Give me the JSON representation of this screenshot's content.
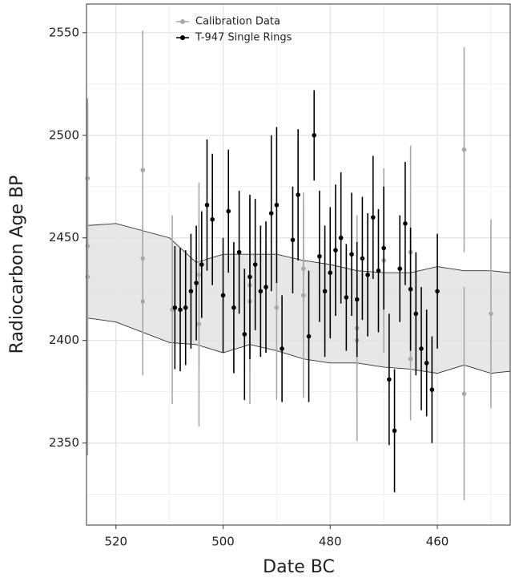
{
  "chart_data": {
    "type": "scatter",
    "x_label": "Date BC",
    "y_label": "Radiocarbon Age BP",
    "xlim": [
      525.5,
      446.4
    ],
    "ylim": [
      2310,
      2564
    ],
    "xticks": [
      520,
      500,
      480,
      460
    ],
    "yticks": [
      2350,
      2400,
      2450,
      2500,
      2550
    ],
    "x_minor_ticks": [
      510,
      490,
      470,
      450
    ],
    "y_minor_ticks": [
      2325,
      2375,
      2425,
      2475,
      2525
    ],
    "grid": true,
    "legend": "top-left",
    "band": {
      "color": "#e3e3e3",
      "x": [
        525.5,
        520,
        510,
        505,
        500,
        495,
        490,
        485,
        480,
        475,
        470,
        465,
        460,
        455,
        450,
        446.4
      ],
      "upper": [
        2456,
        2457,
        2450,
        2438,
        2442,
        2442,
        2442,
        2439,
        2437,
        2434,
        2433,
        2433,
        2436,
        2434,
        2434,
        2433
      ],
      "lower": [
        2411,
        2409,
        2399,
        2398,
        2394,
        2398,
        2395,
        2391,
        2389,
        2389,
        2387,
        2386,
        2384,
        2388,
        2384,
        2385
      ]
    },
    "series": [
      {
        "name": "Calibration Data",
        "color": "#a8a8a8",
        "x": [
          525.3,
          525.3,
          525.3,
          515,
          515,
          515,
          509.5,
          504.5,
          504.5,
          495,
          495,
          490,
          485,
          485,
          475,
          475,
          470,
          465,
          465,
          455,
          455,
          450
        ],
        "values": [
          2479,
          2446,
          2431,
          2483,
          2440,
          2419,
          2415,
          2432,
          2408,
          2427,
          2419,
          2416,
          2435,
          2422,
          2406,
          2400,
          2439,
          2443,
          2391,
          2493,
          2374,
          2413
        ],
        "errors": [
          36,
          69,
          87,
          68,
          15,
          36,
          46,
          45,
          50,
          42,
          50,
          45,
          30,
          50,
          55,
          26,
          45,
          52,
          30,
          50,
          52,
          46
        ]
      },
      {
        "name": "T-947 Single Rings",
        "color": "#000000",
        "x": [
          509,
          508,
          507,
          506,
          505,
          504,
          503,
          502,
          500,
          499,
          498,
          497,
          496,
          495,
          494,
          493,
          492,
          491,
          490,
          489,
          487,
          486,
          484,
          483,
          482,
          481,
          480,
          479,
          478,
          477,
          476,
          475,
          474,
          473,
          472,
          471,
          470,
          469,
          468,
          467,
          466,
          465,
          464,
          463,
          462,
          461,
          460
        ],
        "values": [
          2416,
          2415,
          2416,
          2424,
          2428,
          2437,
          2466,
          2459,
          2422,
          2463,
          2416,
          2443,
          2403,
          2431,
          2437,
          2424,
          2426,
          2462,
          2466,
          2396,
          2449,
          2471,
          2402,
          2500,
          2441,
          2424,
          2433,
          2444,
          2450,
          2421,
          2442,
          2420,
          2440,
          2432,
          2460,
          2434,
          2445,
          2381,
          2356,
          2435,
          2457,
          2425,
          2413,
          2396,
          2389,
          2376,
          2424
        ],
        "errors": [
          30,
          30,
          28,
          28,
          28,
          26,
          32,
          32,
          28,
          30,
          32,
          30,
          32,
          40,
          32,
          32,
          32,
          38,
          38,
          26,
          26,
          32,
          32,
          22,
          32,
          32,
          32,
          32,
          32,
          26,
          30,
          28,
          30,
          30,
          30,
          30,
          30,
          32,
          30,
          26,
          30,
          30,
          30,
          30,
          26,
          26,
          28
        ]
      }
    ]
  }
}
